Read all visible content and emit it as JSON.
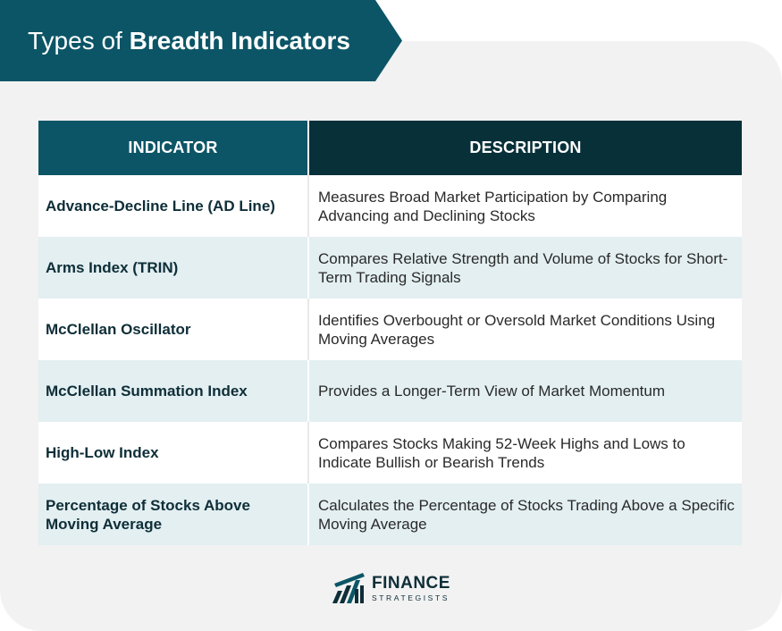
{
  "title": {
    "prefix": "Types of",
    "emphasis": "Breadth Indicators"
  },
  "table": {
    "headers": {
      "indicator": "INDICATOR",
      "description": "DESCRIPTION"
    },
    "rows": [
      {
        "indicator": "Advance-Decline Line (AD Line)",
        "description": "Measures Broad Market Participation by Comparing Advancing and Declining Stocks"
      },
      {
        "indicator": "Arms Index (TRIN)",
        "description": "Compares Relative Strength and Volume of Stocks for Short-Term Trading Signals"
      },
      {
        "indicator": "McClellan Oscillator",
        "description": "Identifies Overbought or Oversold Market Conditions Using Moving Averages"
      },
      {
        "indicator": "McClellan Summation Index",
        "description": "Provides a Longer-Term View of Market Momentum"
      },
      {
        "indicator": "High-Low Index",
        "description": "Compares Stocks Making 52-Week Highs and Lows to Indicate Bullish or Bearish Trends"
      },
      {
        "indicator": "Percentage of Stocks Above Moving Average",
        "description": "Calculates the Percentage of Stocks Trading Above a Specific Moving Average"
      }
    ]
  },
  "logo": {
    "line1": "FINANCE",
    "line2": "STRATEGISTS",
    "icon": "finance-strategists-logo-icon"
  },
  "colors": {
    "teal": "#0b5566",
    "dark_teal": "#073039",
    "row_tint": "#e3eff1",
    "panel": "#f2f2f2"
  }
}
